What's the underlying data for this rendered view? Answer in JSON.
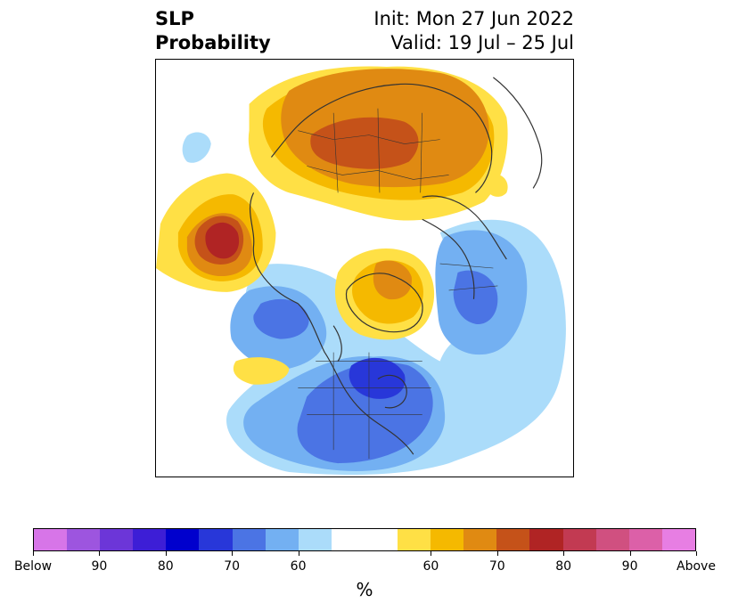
{
  "title": {
    "line1_left": "SLP",
    "line2_left": "Probability",
    "line1_right": "Init: Mon 27 Jun 2022",
    "line2_right": "Valid: 19 Jul – 25 Jul"
  },
  "colorbar": {
    "unit": "%",
    "colors": [
      "#d775e8",
      "#9d55df",
      "#6c36d8",
      "#3d1ed6",
      "#0000cd",
      "#2837d9",
      "#4b74e4",
      "#73b0f2",
      "#abdcfa",
      "#ffffff",
      "#ffffff",
      "#ffe045",
      "#f5b900",
      "#e08a12",
      "#c55219",
      "#b02424",
      "#c23a52",
      "#d05080",
      "#dc60a8",
      "#e77ee3"
    ],
    "tick_labels": [
      "Below",
      "90",
      "80",
      "70",
      "60",
      "60",
      "70",
      "80",
      "90",
      "Above"
    ]
  },
  "map": {
    "projection": "north-polar-stereographic",
    "palette": {
      "light_blue": "#abdcfa",
      "mid_blue": "#73b0f2",
      "blue": "#4b74e4",
      "deep_blue": "#2837d9",
      "yellow": "#ffe045",
      "gold": "#f5b900",
      "orange": "#e08a12",
      "dark_orange": "#c55219",
      "red": "#b02424",
      "coast": "#333333"
    }
  }
}
